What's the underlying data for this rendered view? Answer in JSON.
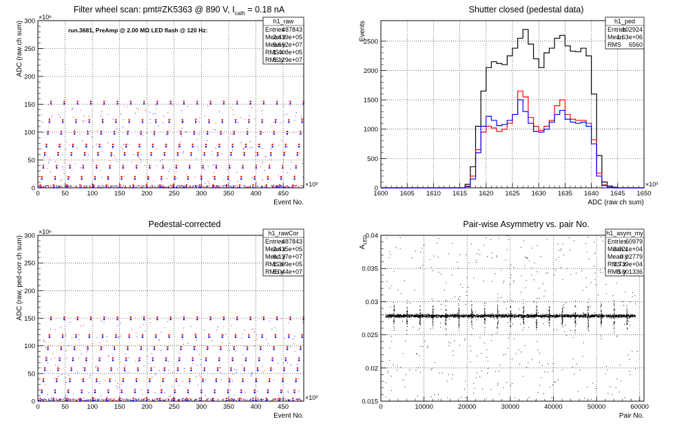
{
  "chart_data": [
    {
      "type": "scatter",
      "title": "Filter wheel scan: pmt#ZK5363 @   890 V, I",
      "title_sub": "cath",
      "title_tail": " = 0.18 nA",
      "annotation": "run.3681, PreAmp @ 2.00 MΩ LED flash @  120 Hz:",
      "xlabel": "Event No.",
      "ylabel": "ADC (raw ch sum)",
      "x_exponent": "×10³",
      "y_exponent": "×10⁶",
      "xlim": [
        0,
        487.8
      ],
      "ylim": [
        0,
        300
      ],
      "xticks": [
        0,
        50,
        100,
        150,
        200,
        250,
        300,
        350,
        400,
        450
      ],
      "yticks": [
        0,
        50,
        100,
        150,
        200,
        250,
        300
      ],
      "grid": true,
      "stats": {
        "name": "h1_raw",
        "rows": [
          {
            "label": "Entries",
            "value": "487843"
          },
          {
            "label": "Mean x",
            "value": "2.439e+05"
          },
          {
            "label": "Mean y",
            "value": "5.662e+07"
          },
          {
            "label": "RMS x",
            "value": "1.408e+05"
          },
          {
            "label": "RMS y",
            "value": "5.129e+07"
          }
        ]
      },
      "levels": [
        0,
        5,
        15,
        20,
        38,
        40,
        60,
        63,
        75,
        78,
        98,
        101,
        118,
        122,
        150,
        155
      ],
      "series": [
        {
          "color": "#ff0000"
        },
        {
          "color": "#0000ff"
        }
      ]
    },
    {
      "type": "line",
      "title": "Shutter closed (pedestal data)",
      "xlabel": "ADC (raw ch sum)",
      "ylabel": "Events",
      "x_exponent": "×10³",
      "xlim": [
        1600,
        1650
      ],
      "ylim": [
        0,
        2850
      ],
      "xticks": [
        1600,
        1605,
        1610,
        1615,
        1620,
        1625,
        1630,
        1635,
        1640,
        1645,
        1650
      ],
      "yticks": [
        0,
        500,
        1000,
        1500,
        2000,
        2500
      ],
      "grid": true,
      "stats": {
        "name": "h1_ped",
        "rows": [
          {
            "label": "Entries",
            "value": "102924"
          },
          {
            "label": "Mean",
            "value": "1.63e+06"
          },
          {
            "label": "RMS",
            "value": "6560"
          }
        ]
      },
      "x": [
        1600,
        1601,
        1602,
        1603,
        1604,
        1605,
        1606,
        1607,
        1608,
        1609,
        1610,
        1611,
        1612,
        1613,
        1614,
        1615,
        1616,
        1617,
        1618,
        1619,
        1620,
        1621,
        1622,
        1623,
        1624,
        1625,
        1626,
        1627,
        1628,
        1629,
        1630,
        1631,
        1632,
        1633,
        1634,
        1635,
        1636,
        1637,
        1638,
        1639,
        1640,
        1641,
        1642,
        1643,
        1644,
        1645,
        1646,
        1647,
        1648,
        1649
      ],
      "series": [
        {
          "color": "#000000",
          "values": [
            0,
            0,
            0,
            0,
            0,
            0,
            0,
            0,
            0,
            0,
            0,
            0,
            0,
            0,
            0,
            0,
            60,
            360,
            1050,
            1650,
            2050,
            2150,
            2120,
            2100,
            2250,
            2380,
            2550,
            2700,
            2450,
            2200,
            2050,
            2300,
            2380,
            2550,
            2600,
            2420,
            2330,
            2320,
            2380,
            2250,
            1600,
            550,
            100,
            30,
            10,
            0,
            0,
            0,
            0,
            0
          ]
        },
        {
          "color": "#ff0000",
          "values": [
            0,
            0,
            0,
            0,
            0,
            0,
            0,
            0,
            0,
            0,
            0,
            0,
            0,
            0,
            0,
            0,
            30,
            200,
            650,
            950,
            1050,
            1020,
            960,
            1000,
            1100,
            1250,
            1650,
            1550,
            1200,
            1050,
            980,
            1050,
            1150,
            1400,
            1500,
            1250,
            1170,
            1150,
            1150,
            1100,
            820,
            250,
            50,
            10,
            0,
            0,
            0,
            0,
            0,
            0
          ]
        },
        {
          "color": "#0000ff",
          "values": [
            0,
            0,
            0,
            0,
            0,
            0,
            0,
            0,
            0,
            0,
            0,
            0,
            0,
            0,
            0,
            0,
            20,
            150,
            600,
            1050,
            1220,
            1150,
            1060,
            1080,
            1150,
            1250,
            1500,
            1300,
            1100,
            960,
            950,
            1000,
            1120,
            1250,
            1320,
            1170,
            1120,
            1100,
            1120,
            1050,
            750,
            200,
            40,
            10,
            0,
            0,
            0,
            0,
            0,
            0
          ]
        }
      ]
    },
    {
      "type": "scatter",
      "title": "Pedestal-corrected",
      "xlabel": "Event No.",
      "ylabel": "ADC (raw, ped-corr ch sum)",
      "x_exponent": "×10³",
      "y_exponent": "×10⁶",
      "xlim": [
        0,
        487.8
      ],
      "ylim": [
        0,
        300
      ],
      "xticks": [
        0,
        50,
        100,
        150,
        200,
        250,
        300,
        350,
        400,
        450
      ],
      "yticks": [
        0,
        50,
        100,
        150,
        200,
        250,
        300
      ],
      "grid": true,
      "stats": {
        "name": "h1_rawCor",
        "rows": [
          {
            "label": "Entries",
            "value": "487843"
          },
          {
            "label": "Mean x",
            "value": "2.435e+05"
          },
          {
            "label": "Mean y",
            "value": "6.137e+07"
          },
          {
            "label": "RMS x",
            "value": "1.399e+05"
          },
          {
            "label": "RMS y",
            "value": "5.044e+07"
          }
        ]
      },
      "levels": [
        0,
        5,
        15,
        20,
        38,
        40,
        58,
        60,
        75,
        78,
        95,
        98,
        118,
        120,
        148,
        152
      ],
      "series": [
        {
          "color": "#ff0000"
        },
        {
          "color": "#0000ff"
        }
      ]
    },
    {
      "type": "scatter",
      "title": "Pair-wise Asymmetry vs. pair No.",
      "xlabel": "Pair No.",
      "ylabel": "A",
      "ylabel_sub": "LED",
      "xlim": [
        0,
        61000
      ],
      "ylim": [
        0.015,
        0.04
      ],
      "xticks": [
        0,
        10000,
        20000,
        30000,
        40000,
        50000,
        60000
      ],
      "yticks": [
        0.015,
        0.02,
        0.025,
        0.03,
        0.035,
        0.04
      ],
      "grid": true,
      "stats": {
        "name": "h1_asym_my",
        "rows": [
          {
            "label": "Entries",
            "value": "60979"
          },
          {
            "label": "Mean x",
            "value": "3.021e+04"
          },
          {
            "label": "Mean y",
            "value": "0.02779"
          },
          {
            "label": "RMS x",
            "value": "1.739e+04"
          },
          {
            "label": "RMS y",
            "value": "0.001336"
          }
        ]
      },
      "band_center": 0.0279,
      "band_halfwidth": 0.0005,
      "spike_every": 3000,
      "series": [
        {
          "color": "#000000"
        }
      ]
    }
  ]
}
